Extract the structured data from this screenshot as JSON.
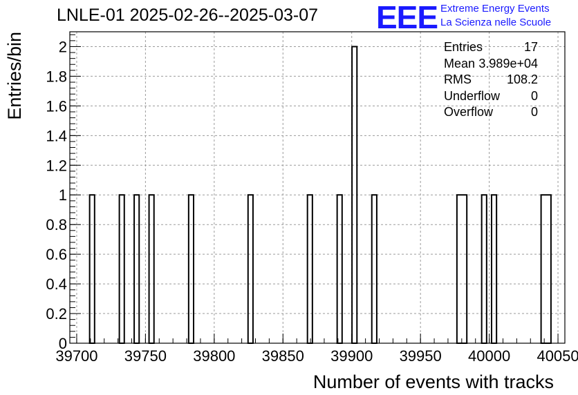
{
  "chart_data": {
    "type": "bar",
    "title": "LNLE-01 2025-02-26--2025-03-07",
    "xlabel": "Number of events with tracks",
    "ylabel": "Entries/bin",
    "xlim": [
      39695,
      40055
    ],
    "ylim": [
      0,
      2.1
    ],
    "bin_width": 3.6,
    "xticks": [
      "39700",
      "39750",
      "39800",
      "39850",
      "39900",
      "39950",
      "40000",
      "40050"
    ],
    "yticks": [
      "0",
      "0.2",
      "0.4",
      "0.6",
      "0.8",
      "1",
      "1.2",
      "1.4",
      "1.6",
      "1.8",
      "2"
    ],
    "bins": [
      {
        "x_low": 39709.4,
        "x_high": 39713.0,
        "count": 1
      },
      {
        "x_low": 39731.0,
        "x_high": 39734.6,
        "count": 1
      },
      {
        "x_low": 39741.8,
        "x_high": 39745.4,
        "count": 1
      },
      {
        "x_low": 39752.6,
        "x_high": 39756.2,
        "count": 1
      },
      {
        "x_low": 39781.4,
        "x_high": 39785.0,
        "count": 1
      },
      {
        "x_low": 39824.6,
        "x_high": 39828.2,
        "count": 1
      },
      {
        "x_low": 39867.8,
        "x_high": 39871.4,
        "count": 1
      },
      {
        "x_low": 39889.4,
        "x_high": 39893.0,
        "count": 1
      },
      {
        "x_low": 39900.2,
        "x_high": 39903.8,
        "count": 2
      },
      {
        "x_low": 39914.6,
        "x_high": 39918.2,
        "count": 1
      },
      {
        "x_low": 39976.5,
        "x_high": 39983.7,
        "count": 1
      },
      {
        "x_low": 39994.5,
        "x_high": 39998.1,
        "count": 1
      },
      {
        "x_low": 40001.7,
        "x_high": 40005.3,
        "count": 1
      },
      {
        "x_low": 40037.7,
        "x_high": 40044.9,
        "count": 1
      }
    ],
    "grid": true,
    "stats_box": {
      "placement": "top-right"
    }
  },
  "stats": [
    {
      "label": "Entries",
      "value": "17"
    },
    {
      "label": "Mean",
      "value": "3.989e+04"
    },
    {
      "label": "RMS",
      "value": "108.2"
    },
    {
      "label": "Underflow",
      "value": "0"
    },
    {
      "label": "Overflow",
      "value": "0"
    }
  ],
  "logo": {
    "mark": "EEE",
    "line1": "Extreme Energy Events",
    "line2": "La Scienza nelle Scuole",
    "color": "#1a1aff"
  }
}
